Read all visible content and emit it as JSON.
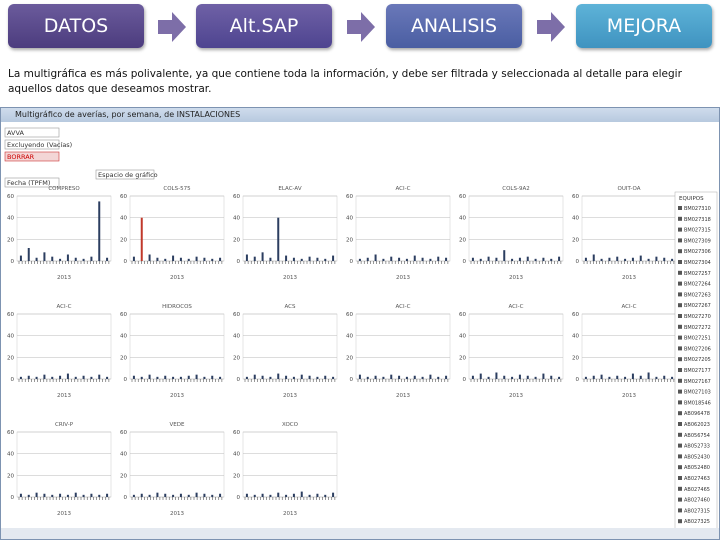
{
  "steps": [
    "DATOS",
    "Alt.SAP",
    "ANALISIS",
    "MEJORA"
  ],
  "description": "La multigráfica es más polivalente, ya que contiene toda la información, y debe ser filtrada y seleccionada al detalle para elegir aquellos datos que deseamos mostrar.",
  "window": {
    "title": "Multigráfico de averías, por semana, de INSTALACIONES",
    "controls": [
      "AVVA",
      "Excluyendo (Vacías)",
      "BORRAR",
      "Espacio de gráfico",
      "Fecha (TPFM)"
    ],
    "panels": [
      {
        "title": "COMPRESO",
        "yticks": [
          0,
          20,
          40,
          60
        ],
        "xlabel": "2013",
        "values": [
          5,
          12,
          3,
          8,
          4,
          2,
          6,
          3,
          2,
          4,
          55,
          3
        ]
      },
      {
        "title": "COLS-575",
        "yticks": [
          0,
          20,
          40,
          60
        ],
        "xlabel": "2013",
        "values": [
          4,
          40,
          6,
          3,
          2,
          5,
          3,
          2,
          4,
          3,
          2,
          3
        ]
      },
      {
        "title": "ELAC-AV",
        "yticks": [
          0,
          20,
          40,
          60
        ],
        "xlabel": "2013",
        "values": [
          6,
          4,
          8,
          3,
          40,
          5,
          3,
          2,
          4,
          3,
          2,
          5
        ]
      },
      {
        "title": "ACI-C",
        "yticks": [
          0,
          20,
          40,
          60
        ],
        "xlabel": "2013",
        "values": [
          2,
          3,
          6,
          2,
          4,
          3,
          2,
          5,
          3,
          2,
          4,
          3
        ]
      },
      {
        "title": "COLS-9A2",
        "yticks": [
          0,
          20,
          40,
          60
        ],
        "xlabel": "2013",
        "values": [
          3,
          2,
          4,
          3,
          10,
          2,
          3,
          4,
          2,
          3,
          2,
          4
        ]
      },
      {
        "title": "OUIT-OA",
        "yticks": [
          0,
          20,
          40,
          60
        ],
        "xlabel": "2013",
        "values": [
          3,
          6,
          2,
          3,
          4,
          2,
          3,
          5,
          2,
          4,
          3,
          2
        ]
      },
      {
        "title": "ACI-C",
        "yticks": [
          0,
          20,
          40,
          60
        ],
        "xlabel": "2013",
        "values": [
          2,
          3,
          2,
          4,
          2,
          3,
          5,
          2,
          3,
          2,
          4,
          2
        ]
      },
      {
        "title": "HIDROCOS",
        "yticks": [
          0,
          20,
          40,
          60
        ],
        "xlabel": "2013",
        "values": [
          3,
          2,
          4,
          2,
          3,
          2,
          2,
          3,
          4,
          2,
          3,
          2
        ]
      },
      {
        "title": "ACS",
        "yticks": [
          0,
          20,
          40,
          60
        ],
        "xlabel": "2013",
        "values": [
          2,
          4,
          3,
          2,
          5,
          3,
          2,
          4,
          3,
          2,
          3,
          2
        ]
      },
      {
        "title": "ACI-C",
        "yticks": [
          0,
          20,
          40,
          60
        ],
        "xlabel": "2013",
        "values": [
          4,
          2,
          3,
          2,
          4,
          3,
          2,
          3,
          2,
          4,
          2,
          3
        ]
      },
      {
        "title": "ACI-C",
        "yticks": [
          0,
          20,
          40,
          60
        ],
        "xlabel": "2013",
        "values": [
          3,
          5,
          2,
          6,
          3,
          2,
          4,
          3,
          2,
          5,
          3,
          2
        ]
      },
      {
        "title": "ACI-C",
        "yticks": [
          0,
          20,
          40,
          60
        ],
        "xlabel": "2013",
        "values": [
          2,
          3,
          4,
          2,
          3,
          2,
          5,
          3,
          6,
          2,
          3,
          2
        ]
      },
      {
        "title": "CRIV-P",
        "yticks": [
          0,
          20,
          40,
          60
        ],
        "xlabel": "2013",
        "values": [
          3,
          2,
          4,
          3,
          2,
          3,
          2,
          4,
          2,
          3,
          2,
          3
        ]
      },
      {
        "title": "VEDE",
        "yticks": [
          0,
          20,
          40,
          60
        ],
        "xlabel": "2013",
        "values": [
          2,
          3,
          2,
          4,
          3,
          2,
          3,
          2,
          4,
          3,
          2,
          3
        ]
      },
      {
        "title": "XOCO",
        "yticks": [
          0,
          20,
          40,
          60
        ],
        "xlabel": "2013",
        "values": [
          3,
          2,
          3,
          2,
          4,
          2,
          3,
          5,
          2,
          3,
          2,
          4
        ]
      }
    ],
    "legend_title": "EQUIPOS",
    "legend": [
      "BM027310",
      "BM027318",
      "BM027315",
      "BM027309",
      "BM027306",
      "BM027304",
      "BM027257",
      "BM027264",
      "BM027263",
      "BM027267",
      "BM027270",
      "BM027272",
      "BM027251",
      "BM027206",
      "BM027205",
      "BM027177",
      "BM027167",
      "BM027103",
      "BM018546",
      "AB096478",
      "AB062023",
      "AB056754",
      "AB052733",
      "AB052430",
      "AB052480",
      "AB027463",
      "AB027465",
      "AB027460",
      "AB027315",
      "AB027325"
    ]
  }
}
